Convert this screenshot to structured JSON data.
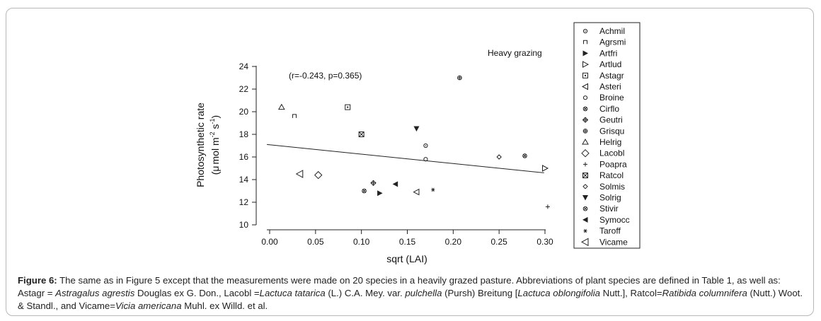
{
  "chart_data": {
    "type": "scatter",
    "title": "Heavy grazing",
    "annotation": "(r=-0.243, p=0.365)",
    "xlabel": "sqrt (LAI)",
    "ylabel_line1": "Photosynthetic rate",
    "ylabel_line2_prefix": "(",
    "ylabel_mu": "μ",
    "ylabel_mol": "mol m",
    "ylabel_sup1": "-2",
    "ylabel_s": " s",
    "ylabel_sup2": "-1",
    "ylabel_close": ")",
    "xlim": [
      0.0,
      0.3
    ],
    "ylim": [
      10,
      24
    ],
    "x_ticks": [
      "0.00",
      "0.05",
      "0.10",
      "0.15",
      "0.20",
      "0.25",
      "0.30"
    ],
    "y_ticks": [
      "10",
      "12",
      "14",
      "16",
      "18",
      "20",
      "22",
      "24"
    ],
    "regression": {
      "x": [
        -0.003,
        0.299
      ],
      "y": [
        17.1,
        14.6
      ]
    },
    "legend_position": "right",
    "points": [
      {
        "name": "Achmil",
        "marker": "circle-dot",
        "x": 0.17,
        "y": 17.0
      },
      {
        "name": "Agrsmi",
        "marker": "square-small",
        "x": 0.027,
        "y": 19.6
      },
      {
        "name": "Artfri",
        "marker": "tri-right-filled",
        "x": 0.12,
        "y": 12.8
      },
      {
        "name": "Artlud",
        "marker": "tri-right-open",
        "x": 0.3,
        "y": 15.0
      },
      {
        "name": "Astagr",
        "marker": "square-dot",
        "x": 0.085,
        "y": 20.4
      },
      {
        "name": "Asteri",
        "marker": "tri-left-open",
        "x": 0.16,
        "y": 12.9
      },
      {
        "name": "Broine",
        "marker": "circle",
        "x": 0.17,
        "y": 15.8
      },
      {
        "name": "Cirflo",
        "marker": "circle-x",
        "x": 0.103,
        "y": 13.0
      },
      {
        "name": "Geutri",
        "marker": "diamond-plus",
        "x": 0.113,
        "y": 13.7
      },
      {
        "name": "Grisqu",
        "marker": "circle-plus",
        "x": 0.207,
        "y": 23.0
      },
      {
        "name": "Helrig",
        "marker": "tri-up-open",
        "x": 0.013,
        "y": 20.4
      },
      {
        "name": "Lacobl",
        "marker": "diamond-big",
        "x": 0.053,
        "y": 14.4
      },
      {
        "name": "Poapra",
        "marker": "plus",
        "x": 0.303,
        "y": 11.6
      },
      {
        "name": "Ratcol",
        "marker": "square-x",
        "x": 0.1,
        "y": 18.0
      },
      {
        "name": "Solmis",
        "marker": "diamond-small",
        "x": 0.25,
        "y": 16.0
      },
      {
        "name": "Solrig",
        "marker": "tri-down-filled",
        "x": 0.16,
        "y": 18.5
      },
      {
        "name": "Stivir",
        "marker": "circle-x",
        "x": 0.278,
        "y": 16.1
      },
      {
        "name": "Symocc",
        "marker": "tri-left-filled",
        "x": 0.137,
        "y": 13.6
      },
      {
        "name": "Taroff",
        "marker": "asterisk",
        "x": 0.178,
        "y": 13.1
      },
      {
        "name": "Vicame",
        "marker": "tri-left-open-big",
        "x": 0.033,
        "y": 14.5
      }
    ]
  },
  "caption": {
    "label": "Figure 6:",
    "text1": " The same as in Figure 5 except that the measurements were made on 20 species in a heavily grazed pasture. Abbreviations of plant species are defined in Table 1, as well as: Astagr = ",
    "sp1": "Astragalus agrestis",
    "text2": " Douglas ex G. Don., Lacobl =",
    "sp2": "Lactuca tatarica",
    "text3": " (L.) C.A. Mey. var. ",
    "sp3": "pulchella",
    "text4": " (Pursh) Breitung [",
    "sp4": "Lactuca oblongifolia",
    "text5": " Nutt.], Ratcol=",
    "sp5": "Ratibida columnifera",
    "text6": " (Nutt.) Woot. & Standl., and Vicame=",
    "sp6": "Vicia americana",
    "text7": " Muhl. ex Willd. et al."
  }
}
